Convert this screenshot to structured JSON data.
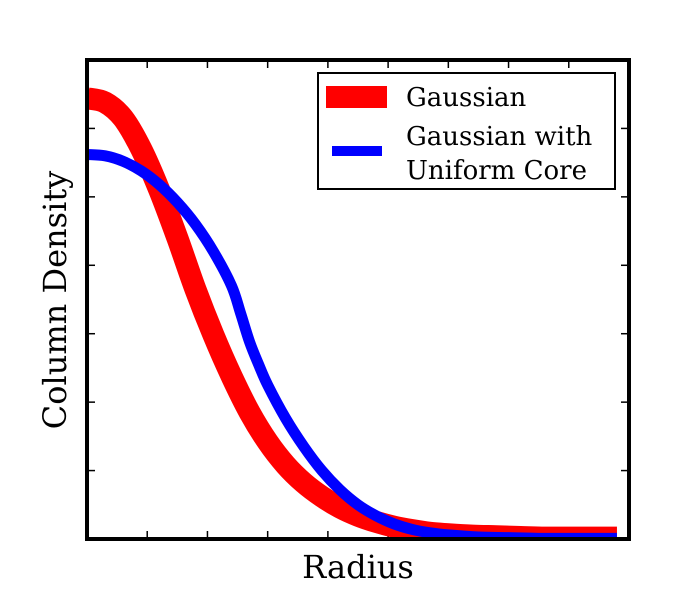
{
  "chart_data": {
    "type": "line",
    "title": "",
    "xlabel": "Radius",
    "ylabel": "Column Density",
    "xlim": [
      0,
      9
    ],
    "ylim": [
      0,
      7
    ],
    "x_ticks": [
      1,
      2,
      3,
      4,
      5,
      6,
      7,
      8
    ],
    "y_ticks": [
      1,
      2,
      3,
      4,
      5,
      6
    ],
    "tick_labels_shown": false,
    "grid": false,
    "legend": "top-right",
    "series": [
      {
        "name": "Gaussian",
        "color": "#ff0000",
        "points": [
          [
            0.0,
            6.44
          ],
          [
            0.3,
            6.38
          ],
          [
            0.6,
            6.15
          ],
          [
            0.9,
            5.7
          ],
          [
            1.2,
            5.1
          ],
          [
            1.5,
            4.4
          ],
          [
            1.8,
            3.65
          ],
          [
            2.1,
            2.98
          ],
          [
            2.4,
            2.38
          ],
          [
            2.7,
            1.85
          ],
          [
            3.0,
            1.42
          ],
          [
            3.3,
            1.08
          ],
          [
            3.6,
            0.82
          ],
          [
            3.9,
            0.62
          ],
          [
            4.2,
            0.46
          ],
          [
            4.5,
            0.34
          ],
          [
            4.8,
            0.25
          ],
          [
            5.1,
            0.18
          ],
          [
            5.4,
            0.13
          ],
          [
            5.7,
            0.09
          ],
          [
            6.0,
            0.07
          ],
          [
            6.4,
            0.05
          ],
          [
            6.8,
            0.04
          ],
          [
            7.2,
            0.03
          ],
          [
            7.6,
            0.02
          ],
          [
            8.0,
            0.02
          ],
          [
            8.4,
            0.02
          ],
          [
            8.8,
            0.02
          ]
        ]
      },
      {
        "name": "Gaussian with\nUniform Core",
        "color": "#0000ff",
        "points": [
          [
            0.0,
            5.62
          ],
          [
            0.3,
            5.6
          ],
          [
            0.6,
            5.52
          ],
          [
            0.9,
            5.38
          ],
          [
            1.2,
            5.18
          ],
          [
            1.5,
            4.92
          ],
          [
            1.8,
            4.6
          ],
          [
            2.1,
            4.2
          ],
          [
            2.4,
            3.7
          ],
          [
            2.55,
            3.3
          ],
          [
            2.7,
            2.88
          ],
          [
            2.85,
            2.55
          ],
          [
            3.0,
            2.25
          ],
          [
            3.3,
            1.76
          ],
          [
            3.6,
            1.35
          ],
          [
            3.9,
            1.0
          ],
          [
            4.2,
            0.72
          ],
          [
            4.5,
            0.5
          ],
          [
            4.8,
            0.34
          ],
          [
            5.1,
            0.22
          ],
          [
            5.4,
            0.14
          ],
          [
            5.7,
            0.09
          ],
          [
            6.0,
            0.06
          ],
          [
            6.5,
            0.03
          ],
          [
            7.0,
            0.02
          ],
          [
            7.5,
            0.01
          ],
          [
            8.0,
            0.01
          ],
          [
            8.8,
            0.01
          ]
        ]
      }
    ]
  },
  "legend": {
    "entries": [
      {
        "label_lines": [
          "Gaussian"
        ],
        "color": "#ff0000"
      },
      {
        "label_lines": [
          "Gaussian with",
          "Uniform Core"
        ],
        "color": "#0000ff"
      }
    ]
  }
}
